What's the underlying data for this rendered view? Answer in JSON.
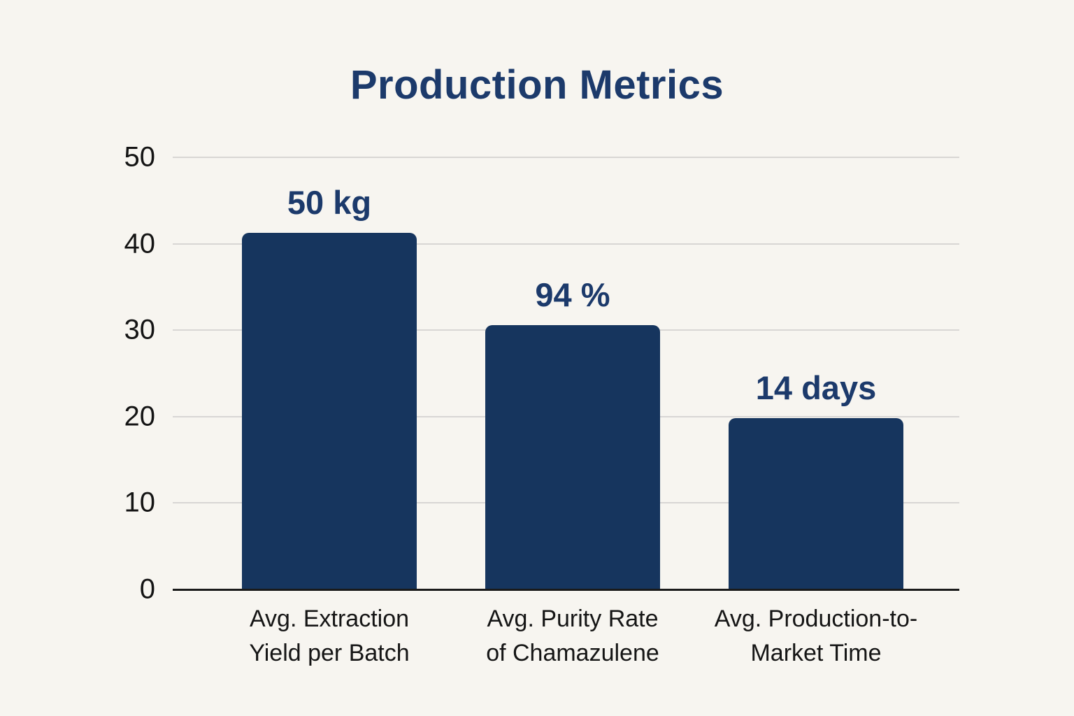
{
  "chart_data": {
    "type": "bar",
    "title": "Production Metrics",
    "xlabel": "",
    "ylabel": "",
    "legend_position": "none",
    "grid": "horizontal",
    "ylim": [
      0,
      50
    ],
    "yticks": [
      0,
      10,
      20,
      30,
      40,
      50
    ],
    "categories": [
      "Avg. Extraction Yield per Batch",
      "Avg. Purity Rate of Chamazulene",
      "Avg. Production-to-Market Time"
    ],
    "category_label_lines": [
      [
        "Avg. Extraction",
        "Yield per Batch"
      ],
      [
        "Avg. Purity Rate",
        "of Chamazulene"
      ],
      [
        "Avg. Production-to-",
        "Market Time"
      ]
    ],
    "value_labels": [
      "50 kg",
      "94 %",
      "14 days"
    ],
    "bar_heights_axis_units": [
      41.3,
      30.6,
      19.8
    ],
    "colors": {
      "background": "#F7F5F0",
      "bar": "#16355E",
      "title": "#1C3A6B",
      "value_label": "#1C3A6B",
      "gridline": "#D8D6D4",
      "axis_line": "#1A1A1A",
      "tick_label": "#141414",
      "category_label": "#151515"
    }
  }
}
